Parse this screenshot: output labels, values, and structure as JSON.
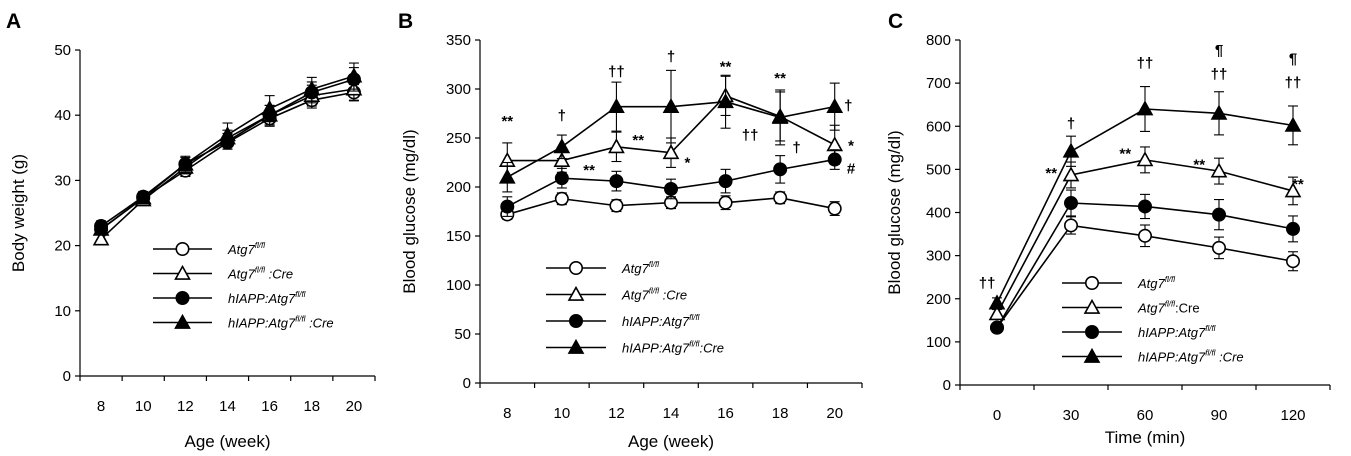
{
  "chart_data": [
    {
      "panel": "A",
      "type": "line",
      "xlabel": "Age (week)",
      "ylabel": "Body weight (g)",
      "ylim": [
        0,
        50
      ],
      "yticks": [
        0,
        10,
        20,
        30,
        40,
        50
      ],
      "x": [
        8,
        10,
        12,
        14,
        16,
        18,
        20
      ],
      "xlim": [
        7,
        21
      ],
      "legend_position": "bottom-right",
      "series": [
        {
          "name": "Atg7",
          "suffix": "",
          "marker": "circle-open",
          "values": [
            22.5,
            27.3,
            31.5,
            35.8,
            39.5,
            42.3,
            43.5
          ],
          "err": [
            0.8,
            0.8,
            0.9,
            1.0,
            1.2,
            1.2,
            1.2
          ]
        },
        {
          "name": "Atg7",
          "suffix": " :Cre",
          "marker": "triangle-open",
          "values": [
            21.0,
            27.0,
            32.0,
            36.5,
            40.0,
            43.0,
            44.0
          ],
          "err": [
            0.8,
            0.8,
            1.0,
            1.2,
            1.5,
            1.6,
            1.8
          ]
        },
        {
          "name": "hIAPP:Atg7",
          "suffix": "",
          "marker": "circle-filled",
          "values": [
            23.0,
            27.5,
            32.5,
            36.0,
            40.0,
            43.5,
            45.5
          ],
          "err": [
            0.8,
            0.8,
            1.0,
            1.2,
            1.5,
            1.6,
            1.8
          ]
        },
        {
          "name": "hIAPP:Atg7",
          "suffix": " :Cre",
          "marker": "triangle-filled",
          "values": [
            22.5,
            27.3,
            32.5,
            37.0,
            41.0,
            44.0,
            46.0
          ],
          "err": [
            0.8,
            0.8,
            1.2,
            1.8,
            2.0,
            1.8,
            2.0
          ]
        }
      ],
      "superscript": "fl/fl"
    },
    {
      "panel": "B",
      "type": "line",
      "xlabel": "Age (week)",
      "ylabel": "Blood glucose (mg/dl)",
      "ylim": [
        0,
        350
      ],
      "yticks": [
        0,
        50,
        100,
        150,
        200,
        250,
        300,
        350
      ],
      "x": [
        8,
        10,
        12,
        14,
        16,
        18,
        20
      ],
      "xlim": [
        7,
        21
      ],
      "legend_position": "bottom-center",
      "series": [
        {
          "name": "Atg7",
          "suffix": "",
          "marker": "circle-open",
          "values": [
            172,
            188,
            181,
            184,
            184,
            189,
            178
          ],
          "err": [
            5,
            6,
            6,
            6,
            7,
            6,
            7
          ]
        },
        {
          "name": "Atg7",
          "suffix": " :Cre",
          "marker": "triangle-open",
          "values": [
            227,
            227,
            241,
            235,
            293,
            272,
            243
          ],
          "err": [
            18,
            12,
            15,
            15,
            20,
            25,
            20
          ]
        },
        {
          "name": "hIAPP:Atg7",
          "suffix": "",
          "marker": "circle-filled",
          "values": [
            180,
            209,
            206,
            198,
            206,
            218,
            228
          ],
          "err": [
            10,
            10,
            10,
            10,
            12,
            14,
            10
          ]
        },
        {
          "name": "hIAPP:Atg7",
          "suffix": ":Cre",
          "marker": "triangle-filled",
          "values": [
            210,
            241,
            282,
            282,
            287,
            271,
            282
          ],
          "err": [
            15,
            12,
            25,
            37,
            27,
            28,
            24
          ]
        }
      ],
      "superscript": "fl/fl",
      "annotations": [
        {
          "text": "**",
          "x": 8,
          "y": 262
        },
        {
          "text": "†",
          "x": 10,
          "y": 268
        },
        {
          "text": "**",
          "x": 11,
          "y": 212
        },
        {
          "text": "††",
          "x": 12,
          "y": 313
        },
        {
          "text": "**",
          "x": 12.8,
          "y": 243
        },
        {
          "text": "†",
          "x": 14,
          "y": 328
        },
        {
          "text": "*",
          "x": 14.6,
          "y": 220
        },
        {
          "text": "**",
          "x": 16,
          "y": 318
        },
        {
          "text": "††",
          "x": 16.9,
          "y": 248
        },
        {
          "text": "**",
          "x": 18,
          "y": 306
        },
        {
          "text": "†",
          "x": 18.6,
          "y": 235
        },
        {
          "text": "†",
          "x": 20.5,
          "y": 278
        },
        {
          "text": "*",
          "x": 20.6,
          "y": 237
        },
        {
          "text": "#",
          "x": 20.6,
          "y": 214
        }
      ]
    },
    {
      "panel": "C",
      "type": "line",
      "xlabel": "Time (min)",
      "ylabel": "Blood glucose (mg/dl)",
      "ylim": [
        0,
        800
      ],
      "yticks": [
        0,
        100,
        200,
        300,
        400,
        500,
        600,
        700,
        800
      ],
      "x": [
        0,
        30,
        60,
        90,
        120
      ],
      "xlim": [
        -15,
        135
      ],
      "legend_position": "bottom-center",
      "series": [
        {
          "name": "Atg7",
          "suffix": "",
          "marker": "circle-open",
          "values": [
            133,
            370,
            346,
            318,
            287
          ],
          "err": [
            6,
            20,
            25,
            25,
            22
          ]
        },
        {
          "name": "Atg7",
          "suffix": ":Cre",
          "marker": "triangle-open",
          "upright": true,
          "values": [
            165,
            487,
            522,
            496,
            450
          ],
          "err": [
            10,
            30,
            30,
            30,
            32
          ]
        },
        {
          "name": "hIAPP:Atg7",
          "suffix": "",
          "marker": "circle-filled",
          "values": [
            133,
            422,
            414,
            395,
            362
          ],
          "err": [
            8,
            30,
            28,
            35,
            30
          ]
        },
        {
          "name": "hIAPP:Atg7",
          "suffix": " :Cre",
          "marker": "triangle-filled",
          "values": [
            190,
            542,
            640,
            630,
            602
          ],
          "err": [
            12,
            35,
            52,
            50,
            45
          ]
        }
      ],
      "superscript": "fl/fl",
      "annotations": [
        {
          "text": "††",
          "x": -4,
          "y": 225
        },
        {
          "text": "**",
          "x": 22,
          "y": 480
        },
        {
          "text": "†",
          "x": 30,
          "y": 595
        },
        {
          "text": "**",
          "x": 52,
          "y": 525
        },
        {
          "text": "††",
          "x": 60,
          "y": 735
        },
        {
          "text": "**",
          "x": 82,
          "y": 500
        },
        {
          "text": "††",
          "x": 90,
          "y": 710
        },
        {
          "text": "¶",
          "x": 90,
          "y": 765
        },
        {
          "text": "**",
          "x": 122,
          "y": 455
        },
        {
          "text": "††",
          "x": 120,
          "y": 690
        },
        {
          "text": "¶",
          "x": 120,
          "y": 745
        }
      ]
    }
  ]
}
